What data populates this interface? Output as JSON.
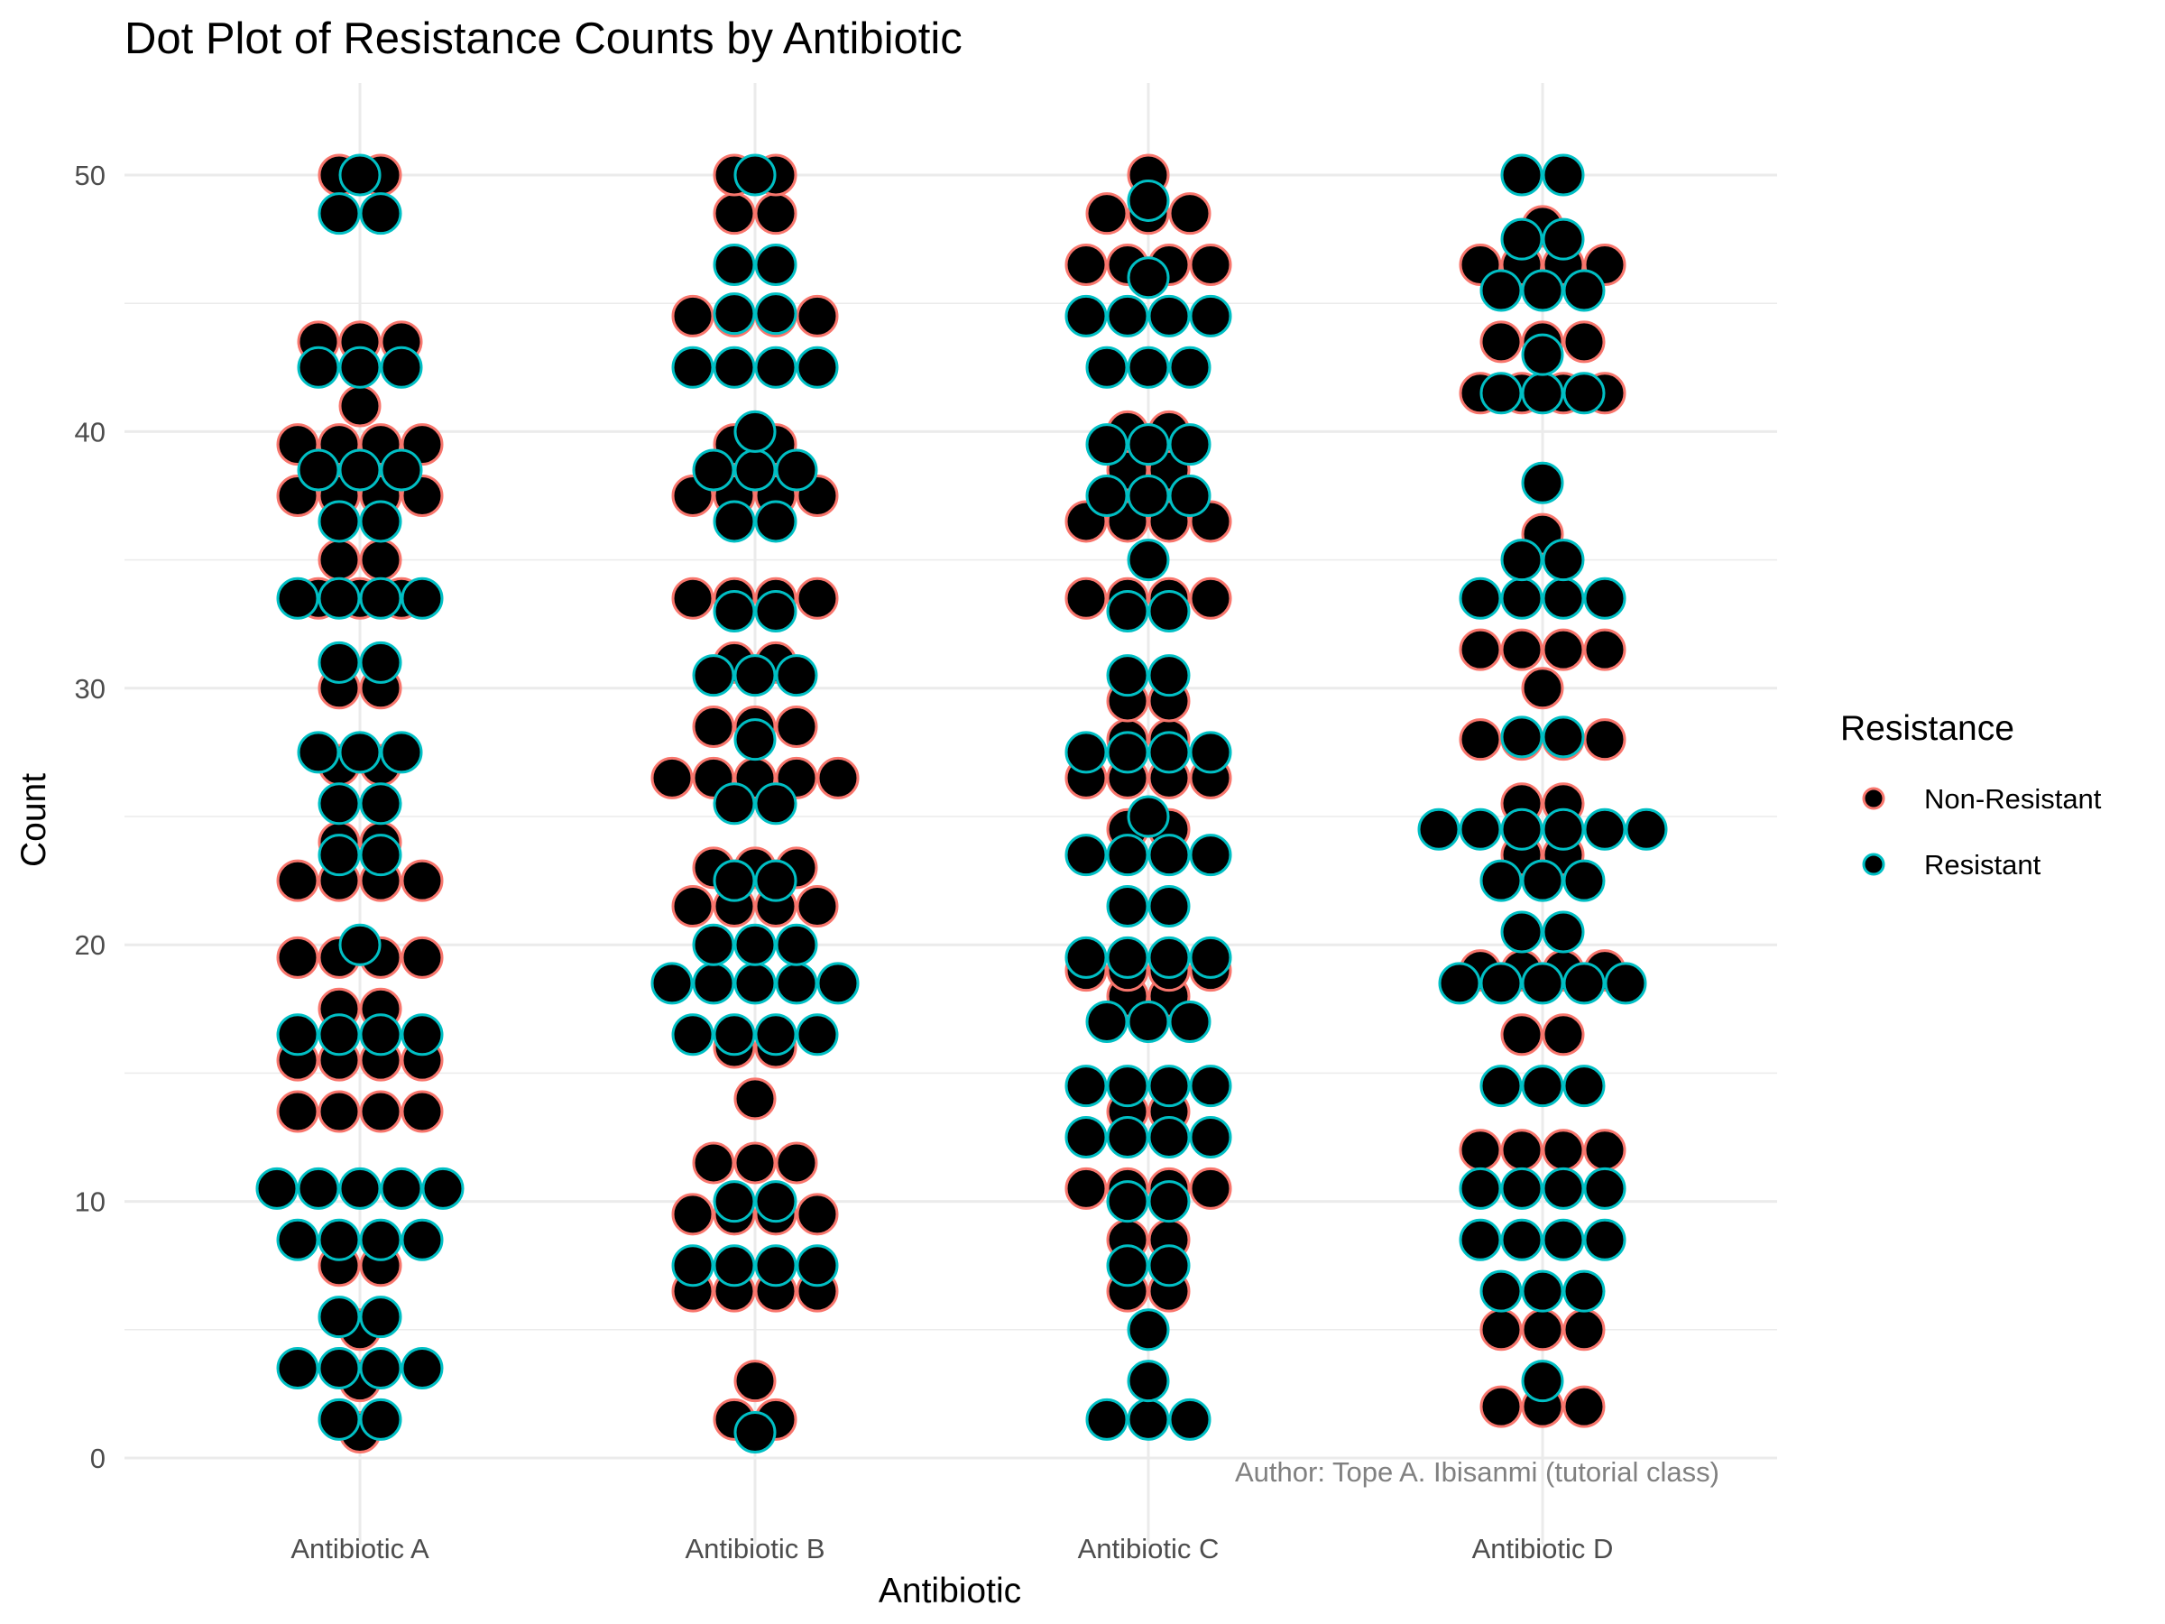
{
  "chart_data": {
    "type": "dotplot",
    "title": "Dot Plot of Resistance Counts by Antibiotic",
    "xlabel": "Antibiotic",
    "ylabel": "Count",
    "categories": [
      "Antibiotic A",
      "Antibiotic B",
      "Antibiotic C",
      "Antibiotic D"
    ],
    "yticks": [
      0,
      10,
      20,
      30,
      40,
      50
    ],
    "ylim": [
      0,
      50
    ],
    "grid": true,
    "legend": {
      "title": "Resistance",
      "position": "right",
      "entries": [
        {
          "label": "Non-Resistant",
          "color": "#F8766D"
        },
        {
          "label": "Resistant",
          "color": "#00BFC4"
        }
      ]
    },
    "caption": "Author: Tope A. Ibisanmi (tutorial class)",
    "dot_fill": "#000000",
    "bins": [
      {
        "category": "Antibiotic A",
        "y": 1,
        "nr": 1,
        "r": 0
      },
      {
        "category": "Antibiotic A",
        "y": 1.5,
        "nr": 0,
        "r": 2
      },
      {
        "category": "Antibiotic A",
        "y": 3,
        "nr": 1,
        "r": 0
      },
      {
        "category": "Antibiotic A",
        "y": 3.5,
        "nr": 0,
        "r": 4
      },
      {
        "category": "Antibiotic A",
        "y": 5,
        "nr": 1,
        "r": 0
      },
      {
        "category": "Antibiotic A",
        "y": 5.5,
        "nr": 0,
        "r": 2
      },
      {
        "category": "Antibiotic A",
        "y": 7.5,
        "nr": 2,
        "r": 0
      },
      {
        "category": "Antibiotic A",
        "y": 8.5,
        "nr": 0,
        "r": 4
      },
      {
        "category": "Antibiotic A",
        "y": 10.5,
        "nr": 0,
        "r": 5
      },
      {
        "category": "Antibiotic A",
        "y": 13.5,
        "nr": 4,
        "r": 0
      },
      {
        "category": "Antibiotic A",
        "y": 15.5,
        "nr": 4,
        "r": 0
      },
      {
        "category": "Antibiotic A",
        "y": 16.5,
        "nr": 0,
        "r": 4
      },
      {
        "category": "Antibiotic A",
        "y": 17.5,
        "nr": 2,
        "r": 0
      },
      {
        "category": "Antibiotic A",
        "y": 19.5,
        "nr": 4,
        "r": 0
      },
      {
        "category": "Antibiotic A",
        "y": 20,
        "nr": 0,
        "r": 1
      },
      {
        "category": "Antibiotic A",
        "y": 22.5,
        "nr": 4,
        "r": 0
      },
      {
        "category": "Antibiotic A",
        "y": 23.5,
        "nr": 0,
        "r": 2
      },
      {
        "category": "Antibiotic A",
        "y": 24,
        "nr": 2,
        "r": 0
      },
      {
        "category": "Antibiotic A",
        "y": 25.5,
        "nr": 0,
        "r": 2
      },
      {
        "category": "Antibiotic A",
        "y": 27,
        "nr": 2,
        "r": 0
      },
      {
        "category": "Antibiotic A",
        "y": 27.5,
        "nr": 0,
        "r": 3
      },
      {
        "category": "Antibiotic A",
        "y": 30,
        "nr": 2,
        "r": 0
      },
      {
        "category": "Antibiotic A",
        "y": 31,
        "nr": 0,
        "r": 2
      },
      {
        "category": "Antibiotic A",
        "y": 33.5,
        "nr": 3,
        "r": 4
      },
      {
        "category": "Antibiotic A",
        "y": 35,
        "nr": 2,
        "r": 0
      },
      {
        "category": "Antibiotic A",
        "y": 36.5,
        "nr": 0,
        "r": 2
      },
      {
        "category": "Antibiotic A",
        "y": 37.5,
        "nr": 4,
        "r": 0
      },
      {
        "category": "Antibiotic A",
        "y": 38.5,
        "nr": 0,
        "r": 3
      },
      {
        "category": "Antibiotic A",
        "y": 39.5,
        "nr": 4,
        "r": 0
      },
      {
        "category": "Antibiotic A",
        "y": 41,
        "nr": 1,
        "r": 0
      },
      {
        "category": "Antibiotic A",
        "y": 42.5,
        "nr": 0,
        "r": 3
      },
      {
        "category": "Antibiotic A",
        "y": 43.5,
        "nr": 3,
        "r": 0
      },
      {
        "category": "Antibiotic A",
        "y": 48.5,
        "nr": 0,
        "r": 2
      },
      {
        "category": "Antibiotic A",
        "y": 50,
        "nr": 2,
        "r": 1
      },
      {
        "category": "Antibiotic B",
        "y": 1,
        "nr": 0,
        "r": 1
      },
      {
        "category": "Antibiotic B",
        "y": 1.5,
        "nr": 2,
        "r": 0
      },
      {
        "category": "Antibiotic B",
        "y": 3,
        "nr": 1,
        "r": 0
      },
      {
        "category": "Antibiotic B",
        "y": 6.5,
        "nr": 4,
        "r": 0
      },
      {
        "category": "Antibiotic B",
        "y": 7.5,
        "nr": 0,
        "r": 4
      },
      {
        "category": "Antibiotic B",
        "y": 9.5,
        "nr": 4,
        "r": 0
      },
      {
        "category": "Antibiotic B",
        "y": 10,
        "nr": 0,
        "r": 2
      },
      {
        "category": "Antibiotic B",
        "y": 11.5,
        "nr": 3,
        "r": 0
      },
      {
        "category": "Antibiotic B",
        "y": 14,
        "nr": 1,
        "r": 0
      },
      {
        "category": "Antibiotic B",
        "y": 16,
        "nr": 2,
        "r": 0
      },
      {
        "category": "Antibiotic B",
        "y": 16.5,
        "nr": 0,
        "r": 4
      },
      {
        "category": "Antibiotic B",
        "y": 18.5,
        "nr": 0,
        "r": 5
      },
      {
        "category": "Antibiotic B",
        "y": 20,
        "nr": 0,
        "r": 3
      },
      {
        "category": "Antibiotic B",
        "y": 21.5,
        "nr": 4,
        "r": 0
      },
      {
        "category": "Antibiotic B",
        "y": 22.5,
        "nr": 0,
        "r": 2
      },
      {
        "category": "Antibiotic B",
        "y": 23,
        "nr": 3,
        "r": 0
      },
      {
        "category": "Antibiotic B",
        "y": 25.5,
        "nr": 0,
        "r": 2
      },
      {
        "category": "Antibiotic B",
        "y": 26.5,
        "nr": 5,
        "r": 0
      },
      {
        "category": "Antibiotic B",
        "y": 28,
        "nr": 0,
        "r": 1
      },
      {
        "category": "Antibiotic B",
        "y": 28.5,
        "nr": 3,
        "r": 0
      },
      {
        "category": "Antibiotic B",
        "y": 30.5,
        "nr": 0,
        "r": 3
      },
      {
        "category": "Antibiotic B",
        "y": 31,
        "nr": 2,
        "r": 0
      },
      {
        "category": "Antibiotic B",
        "y": 33,
        "nr": 0,
        "r": 2
      },
      {
        "category": "Antibiotic B",
        "y": 33.5,
        "nr": 4,
        "r": 0
      },
      {
        "category": "Antibiotic B",
        "y": 36.5,
        "nr": 0,
        "r": 2
      },
      {
        "category": "Antibiotic B",
        "y": 37.5,
        "nr": 4,
        "r": 0
      },
      {
        "category": "Antibiotic B",
        "y": 38.5,
        "nr": 0,
        "r": 3
      },
      {
        "category": "Antibiotic B",
        "y": 39.5,
        "nr": 2,
        "r": 0
      },
      {
        "category": "Antibiotic B",
        "y": 40,
        "nr": 0,
        "r": 1
      },
      {
        "category": "Antibiotic B",
        "y": 42.5,
        "nr": 0,
        "r": 4
      },
      {
        "category": "Antibiotic B",
        "y": 44.5,
        "nr": 4,
        "r": 0
      },
      {
        "category": "Antibiotic B",
        "y": 44.6,
        "nr": 0,
        "r": 2
      },
      {
        "category": "Antibiotic B",
        "y": 46.5,
        "nr": 0,
        "r": 2
      },
      {
        "category": "Antibiotic B",
        "y": 48.5,
        "nr": 2,
        "r": 0
      },
      {
        "category": "Antibiotic B",
        "y": 50,
        "nr": 2,
        "r": 1
      },
      {
        "category": "Antibiotic C",
        "y": 1.5,
        "nr": 0,
        "r": 3
      },
      {
        "category": "Antibiotic C",
        "y": 3,
        "nr": 0,
        "r": 1
      },
      {
        "category": "Antibiotic C",
        "y": 5,
        "nr": 0,
        "r": 1
      },
      {
        "category": "Antibiotic C",
        "y": 6.5,
        "nr": 2,
        "r": 0
      },
      {
        "category": "Antibiotic C",
        "y": 7.5,
        "nr": 0,
        "r": 2
      },
      {
        "category": "Antibiotic C",
        "y": 8.5,
        "nr": 2,
        "r": 0
      },
      {
        "category": "Antibiotic C",
        "y": 10,
        "nr": 0,
        "r": 2
      },
      {
        "category": "Antibiotic C",
        "y": 10.5,
        "nr": 4,
        "r": 0
      },
      {
        "category": "Antibiotic C",
        "y": 12.5,
        "nr": 0,
        "r": 4
      },
      {
        "category": "Antibiotic C",
        "y": 13.5,
        "nr": 2,
        "r": 0
      },
      {
        "category": "Antibiotic C",
        "y": 14.5,
        "nr": 0,
        "r": 4
      },
      {
        "category": "Antibiotic C",
        "y": 17,
        "nr": 0,
        "r": 3
      },
      {
        "category": "Antibiotic C",
        "y": 18,
        "nr": 2,
        "r": 0
      },
      {
        "category": "Antibiotic C",
        "y": 19,
        "nr": 4,
        "r": 0
      },
      {
        "category": "Antibiotic C",
        "y": 19.5,
        "nr": 0,
        "r": 4
      },
      {
        "category": "Antibiotic C",
        "y": 21.5,
        "nr": 0,
        "r": 2
      },
      {
        "category": "Antibiotic C",
        "y": 23.5,
        "nr": 0,
        "r": 4
      },
      {
        "category": "Antibiotic C",
        "y": 24.5,
        "nr": 2,
        "r": 0
      },
      {
        "category": "Antibiotic C",
        "y": 25,
        "nr": 0,
        "r": 1
      },
      {
        "category": "Antibiotic C",
        "y": 26.5,
        "nr": 4,
        "r": 0
      },
      {
        "category": "Antibiotic C",
        "y": 27.5,
        "nr": 0,
        "r": 4
      },
      {
        "category": "Antibiotic C",
        "y": 28,
        "nr": 2,
        "r": 0
      },
      {
        "category": "Antibiotic C",
        "y": 29.5,
        "nr": 2,
        "r": 0
      },
      {
        "category": "Antibiotic C",
        "y": 30.5,
        "nr": 0,
        "r": 2
      },
      {
        "category": "Antibiotic C",
        "y": 33,
        "nr": 0,
        "r": 2
      },
      {
        "category": "Antibiotic C",
        "y": 33.5,
        "nr": 4,
        "r": 0
      },
      {
        "category": "Antibiotic C",
        "y": 35,
        "nr": 0,
        "r": 1
      },
      {
        "category": "Antibiotic C",
        "y": 36.5,
        "nr": 4,
        "r": 0
      },
      {
        "category": "Antibiotic C",
        "y": 37.5,
        "nr": 0,
        "r": 3
      },
      {
        "category": "Antibiotic C",
        "y": 38.5,
        "nr": 2,
        "r": 0
      },
      {
        "category": "Antibiotic C",
        "y": 39.5,
        "nr": 0,
        "r": 3
      },
      {
        "category": "Antibiotic C",
        "y": 40,
        "nr": 2,
        "r": 0
      },
      {
        "category": "Antibiotic C",
        "y": 42.5,
        "nr": 0,
        "r": 3
      },
      {
        "category": "Antibiotic C",
        "y": 44.5,
        "nr": 0,
        "r": 4
      },
      {
        "category": "Antibiotic C",
        "y": 46,
        "nr": 0,
        "r": 1
      },
      {
        "category": "Antibiotic C",
        "y": 46.5,
        "nr": 4,
        "r": 0
      },
      {
        "category": "Antibiotic C",
        "y": 48.5,
        "nr": 3,
        "r": 0
      },
      {
        "category": "Antibiotic C",
        "y": 49,
        "nr": 0,
        "r": 1
      },
      {
        "category": "Antibiotic C",
        "y": 50,
        "nr": 1,
        "r": 0
      },
      {
        "category": "Antibiotic D",
        "y": 2,
        "nr": 3,
        "r": 0
      },
      {
        "category": "Antibiotic D",
        "y": 3,
        "nr": 0,
        "r": 1
      },
      {
        "category": "Antibiotic D",
        "y": 5,
        "nr": 3,
        "r": 0
      },
      {
        "category": "Antibiotic D",
        "y": 6.5,
        "nr": 0,
        "r": 3
      },
      {
        "category": "Antibiotic D",
        "y": 8.5,
        "nr": 0,
        "r": 4
      },
      {
        "category": "Antibiotic D",
        "y": 10.5,
        "nr": 0,
        "r": 4
      },
      {
        "category": "Antibiotic D",
        "y": 12,
        "nr": 4,
        "r": 0
      },
      {
        "category": "Antibiotic D",
        "y": 14.5,
        "nr": 0,
        "r": 3
      },
      {
        "category": "Antibiotic D",
        "y": 16.5,
        "nr": 2,
        "r": 0
      },
      {
        "category": "Antibiotic D",
        "y": 18.5,
        "nr": 0,
        "r": 5
      },
      {
        "category": "Antibiotic D",
        "y": 19,
        "nr": 4,
        "r": 0
      },
      {
        "category": "Antibiotic D",
        "y": 20.5,
        "nr": 0,
        "r": 2
      },
      {
        "category": "Antibiotic D",
        "y": 22.5,
        "nr": 0,
        "r": 3
      },
      {
        "category": "Antibiotic D",
        "y": 23.5,
        "nr": 2,
        "r": 0
      },
      {
        "category": "Antibiotic D",
        "y": 24.5,
        "nr": 0,
        "r": 6
      },
      {
        "category": "Antibiotic D",
        "y": 25.5,
        "nr": 2,
        "r": 0
      },
      {
        "category": "Antibiotic D",
        "y": 28,
        "nr": 4,
        "r": 0
      },
      {
        "category": "Antibiotic D",
        "y": 28.1,
        "nr": 0,
        "r": 2
      },
      {
        "category": "Antibiotic D",
        "y": 30,
        "nr": 1,
        "r": 0
      },
      {
        "category": "Antibiotic D",
        "y": 31.5,
        "nr": 4,
        "r": 0
      },
      {
        "category": "Antibiotic D",
        "y": 33.5,
        "nr": 0,
        "r": 4
      },
      {
        "category": "Antibiotic D",
        "y": 35,
        "nr": 0,
        "r": 2
      },
      {
        "category": "Antibiotic D",
        "y": 36,
        "nr": 1,
        "r": 0
      },
      {
        "category": "Antibiotic D",
        "y": 38,
        "nr": 0,
        "r": 1
      },
      {
        "category": "Antibiotic D",
        "y": 41.5,
        "nr": 4,
        "r": 3
      },
      {
        "category": "Antibiotic D",
        "y": 43,
        "nr": 0,
        "r": 1
      },
      {
        "category": "Antibiotic D",
        "y": 43.5,
        "nr": 3,
        "r": 0
      },
      {
        "category": "Antibiotic D",
        "y": 45.5,
        "nr": 0,
        "r": 3
      },
      {
        "category": "Antibiotic D",
        "y": 46.5,
        "nr": 4,
        "r": 0
      },
      {
        "category": "Antibiotic D",
        "y": 47.5,
        "nr": 0,
        "r": 2
      },
      {
        "category": "Antibiotic D",
        "y": 48,
        "nr": 1,
        "r": 0
      },
      {
        "category": "Antibiotic D",
        "y": 50,
        "nr": 0,
        "r": 2
      }
    ]
  }
}
